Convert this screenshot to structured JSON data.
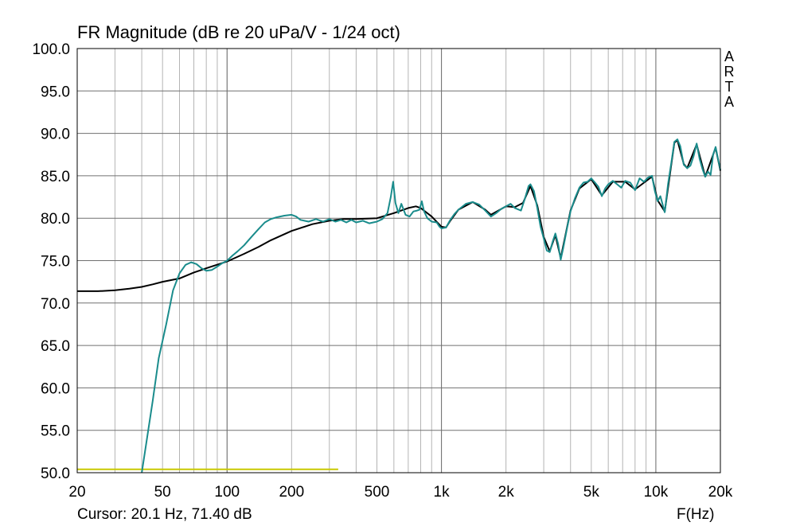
{
  "header": {
    "title": "FR Magnitude (dB re 20 uPa/V - 1/24 oct)",
    "brand_letters": [
      "A",
      "R",
      "T",
      "A"
    ]
  },
  "footer": {
    "cursor_readout": "Cursor: 20.1 Hz, 71.40 dB",
    "x_unit": "F(Hz)"
  },
  "chart_data": {
    "type": "line",
    "title": "FR Magnitude (dB re 20 uPa/V - 1/24 oct)",
    "xlabel": "F(Hz)",
    "ylabel": "",
    "x_scale": "log",
    "xlim": [
      20,
      20000
    ],
    "ylim": [
      50,
      100
    ],
    "grid": true,
    "x_ticks": [
      {
        "value": 20,
        "label": "20"
      },
      {
        "value": 50,
        "label": "50"
      },
      {
        "value": 100,
        "label": "100"
      },
      {
        "value": 200,
        "label": "200"
      },
      {
        "value": 500,
        "label": "500"
      },
      {
        "value": 1000,
        "label": "1k"
      },
      {
        "value": 2000,
        "label": "2k"
      },
      {
        "value": 5000,
        "label": "5k"
      },
      {
        "value": 10000,
        "label": "10k"
      },
      {
        "value": 20000,
        "label": "20k"
      }
    ],
    "y_ticks": [
      {
        "value": 50,
        "label": "50.0"
      },
      {
        "value": 55,
        "label": "55.0"
      },
      {
        "value": 60,
        "label": "60.0"
      },
      {
        "value": 65,
        "label": "65.0"
      },
      {
        "value": 70,
        "label": "70.0"
      },
      {
        "value": 75,
        "label": "75.0"
      },
      {
        "value": 80,
        "label": "80.0"
      },
      {
        "value": 85,
        "label": "85.0"
      },
      {
        "value": 90,
        "label": "90.0"
      },
      {
        "value": 95,
        "label": "95.0"
      },
      {
        "value": 100,
        "label": "100.0"
      }
    ],
    "series": [
      {
        "color": "#1a8c8c",
        "points": [
          [
            40,
            50.0
          ],
          [
            42,
            53.5
          ],
          [
            45,
            58.5
          ],
          [
            48,
            63.5
          ],
          [
            52,
            67.5
          ],
          [
            56,
            71.5
          ],
          [
            60,
            73.5
          ],
          [
            64,
            74.5
          ],
          [
            68,
            74.8
          ],
          [
            72,
            74.6
          ],
          [
            76,
            74.1
          ],
          [
            80,
            73.8
          ],
          [
            85,
            73.9
          ],
          [
            90,
            74.3
          ],
          [
            95,
            74.7
          ],
          [
            100,
            75.0
          ],
          [
            106,
            75.6
          ],
          [
            112,
            76.1
          ],
          [
            120,
            76.8
          ],
          [
            130,
            77.8
          ],
          [
            140,
            78.7
          ],
          [
            150,
            79.5
          ],
          [
            160,
            79.9
          ],
          [
            170,
            80.1
          ],
          [
            185,
            80.3
          ],
          [
            200,
            80.4
          ],
          [
            210,
            80.2
          ],
          [
            220,
            79.8
          ],
          [
            240,
            79.6
          ],
          [
            260,
            79.9
          ],
          [
            280,
            79.6
          ],
          [
            300,
            79.9
          ],
          [
            320,
            79.6
          ],
          [
            340,
            79.8
          ],
          [
            360,
            79.5
          ],
          [
            380,
            79.8
          ],
          [
            400,
            79.5
          ],
          [
            430,
            79.7
          ],
          [
            460,
            79.4
          ],
          [
            500,
            79.6
          ],
          [
            530,
            79.9
          ],
          [
            560,
            80.6
          ],
          [
            580,
            82.5
          ],
          [
            595,
            84.3
          ],
          [
            610,
            81.8
          ],
          [
            630,
            80.6
          ],
          [
            650,
            81.7
          ],
          [
            680,
            80.4
          ],
          [
            710,
            80.2
          ],
          [
            740,
            80.8
          ],
          [
            770,
            80.9
          ],
          [
            790,
            81.0
          ],
          [
            810,
            82.0
          ],
          [
            830,
            80.8
          ],
          [
            860,
            80.0
          ],
          [
            900,
            79.6
          ],
          [
            950,
            79.5
          ],
          [
            980,
            79.0
          ],
          [
            1000,
            78.8
          ],
          [
            1050,
            78.9
          ],
          [
            1100,
            79.8
          ],
          [
            1150,
            80.5
          ],
          [
            1200,
            81.0
          ],
          [
            1300,
            81.7
          ],
          [
            1400,
            81.9
          ],
          [
            1500,
            81.6
          ],
          [
            1600,
            80.9
          ],
          [
            1700,
            80.2
          ],
          [
            1800,
            80.6
          ],
          [
            1900,
            81.1
          ],
          [
            2000,
            81.4
          ],
          [
            2100,
            81.7
          ],
          [
            2200,
            81.2
          ],
          [
            2350,
            80.9
          ],
          [
            2450,
            82.3
          ],
          [
            2550,
            83.8
          ],
          [
            2600,
            84.0
          ],
          [
            2700,
            83.2
          ],
          [
            2800,
            81.2
          ],
          [
            2900,
            79.0
          ],
          [
            3000,
            77.6
          ],
          [
            3100,
            76.2
          ],
          [
            3200,
            76.0
          ],
          [
            3300,
            77.2
          ],
          [
            3400,
            78.2
          ],
          [
            3500,
            77.0
          ],
          [
            3600,
            75.1
          ],
          [
            3700,
            76.5
          ],
          [
            3850,
            78.8
          ],
          [
            4000,
            80.8
          ],
          [
            4200,
            82.4
          ],
          [
            4400,
            83.6
          ],
          [
            4600,
            84.2
          ],
          [
            4800,
            84.3
          ],
          [
            5000,
            84.7
          ],
          [
            5200,
            84.2
          ],
          [
            5400,
            83.7
          ],
          [
            5600,
            82.6
          ],
          [
            5800,
            83.5
          ],
          [
            6000,
            84.0
          ],
          [
            6300,
            84.4
          ],
          [
            6600,
            84.0
          ],
          [
            6900,
            83.6
          ],
          [
            7200,
            84.4
          ],
          [
            7600,
            84.2
          ],
          [
            8000,
            83.3
          ],
          [
            8400,
            84.7
          ],
          [
            8800,
            84.3
          ],
          [
            9200,
            84.8
          ],
          [
            9600,
            85.0
          ],
          [
            9900,
            83.2
          ],
          [
            10200,
            82.0
          ],
          [
            10500,
            82.6
          ],
          [
            11000,
            80.7
          ],
          [
            11400,
            84.0
          ],
          [
            11800,
            86.5
          ],
          [
            12200,
            89.0
          ],
          [
            12600,
            89.3
          ],
          [
            13000,
            88.5
          ],
          [
            13500,
            86.3
          ],
          [
            14000,
            85.9
          ],
          [
            14500,
            86.2
          ],
          [
            15000,
            87.3
          ],
          [
            15500,
            88.8
          ],
          [
            16000,
            87.0
          ],
          [
            16500,
            85.8
          ],
          [
            17000,
            84.9
          ],
          [
            17500,
            85.5
          ],
          [
            18000,
            85.1
          ],
          [
            18500,
            87.5
          ],
          [
            19000,
            88.4
          ],
          [
            19500,
            87.0
          ],
          [
            20000,
            85.7
          ]
        ]
      },
      {
        "color": "#000000",
        "points": [
          [
            20,
            71.4
          ],
          [
            25,
            71.4
          ],
          [
            30,
            71.5
          ],
          [
            35,
            71.7
          ],
          [
            40,
            71.9
          ],
          [
            45,
            72.2
          ],
          [
            50,
            72.5
          ],
          [
            60,
            72.9
          ],
          [
            70,
            73.6
          ],
          [
            80,
            74.1
          ],
          [
            100,
            74.9
          ],
          [
            120,
            75.8
          ],
          [
            140,
            76.6
          ],
          [
            160,
            77.4
          ],
          [
            200,
            78.5
          ],
          [
            250,
            79.3
          ],
          [
            300,
            79.7
          ],
          [
            350,
            79.9
          ],
          [
            400,
            79.9
          ],
          [
            500,
            80.0
          ],
          [
            600,
            80.6
          ],
          [
            700,
            81.2
          ],
          [
            760,
            81.4
          ],
          [
            800,
            81.2
          ],
          [
            900,
            80.2
          ],
          [
            1000,
            79.0
          ],
          [
            1050,
            78.9
          ],
          [
            1100,
            79.7
          ],
          [
            1200,
            81.0
          ],
          [
            1400,
            81.9
          ],
          [
            1600,
            81.0
          ],
          [
            1700,
            80.4
          ],
          [
            2000,
            81.4
          ],
          [
            2200,
            81.3
          ],
          [
            2400,
            81.8
          ],
          [
            2600,
            83.8
          ],
          [
            2800,
            81.5
          ],
          [
            3000,
            77.8
          ],
          [
            3200,
            76.1
          ],
          [
            3400,
            78.0
          ],
          [
            3600,
            75.3
          ],
          [
            4000,
            80.9
          ],
          [
            4400,
            83.5
          ],
          [
            5000,
            84.6
          ],
          [
            5600,
            82.7
          ],
          [
            6300,
            84.3
          ],
          [
            7200,
            84.3
          ],
          [
            8000,
            83.4
          ],
          [
            9600,
            84.9
          ],
          [
            10200,
            82.1
          ],
          [
            11000,
            80.8
          ],
          [
            12200,
            88.9
          ],
          [
            12600,
            89.2
          ],
          [
            13500,
            86.4
          ],
          [
            14000,
            85.9
          ],
          [
            15500,
            88.7
          ],
          [
            17000,
            84.9
          ],
          [
            19000,
            88.3
          ],
          [
            20000,
            85.6
          ]
        ]
      },
      {
        "color": "#c8c800",
        "points": [
          [
            20,
            50.4
          ],
          [
            330,
            50.4
          ]
        ]
      }
    ]
  }
}
